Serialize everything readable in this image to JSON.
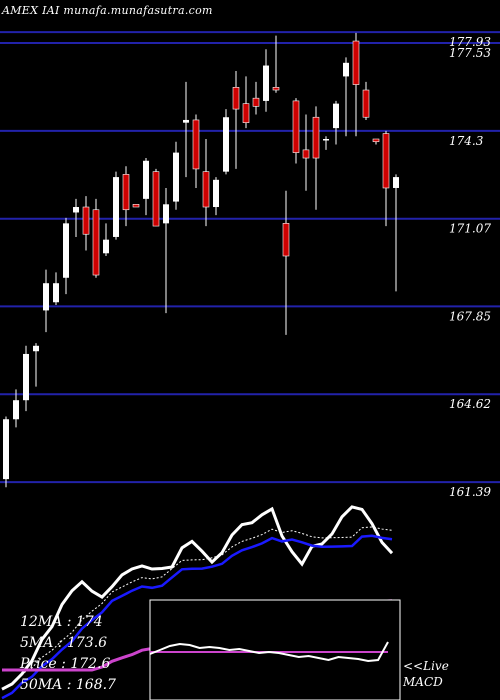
{
  "header": {
    "text": "AMEX  IAI munafa.munafasutra.com"
  },
  "chart_data": {
    "type": "candlestick",
    "price_levels": [
      "177.93",
      "177.53",
      "174.3",
      "171.07",
      "167.85",
      "164.62",
      "161.39"
    ],
    "price_level_values": [
      177.93,
      177.53,
      174.3,
      171.07,
      167.85,
      164.62,
      161.39
    ],
    "ylim": [
      161.1,
      178.3
    ],
    "candles": [
      {
        "o": 161.5,
        "h": 163.8,
        "l": 161.2,
        "c": 163.7
      },
      {
        "o": 163.7,
        "h": 164.8,
        "l": 163.4,
        "c": 164.4
      },
      {
        "o": 164.4,
        "h": 166.4,
        "l": 164.0,
        "c": 166.1
      },
      {
        "o": 166.2,
        "h": 166.5,
        "l": 164.9,
        "c": 166.4
      },
      {
        "o": 167.7,
        "h": 169.2,
        "l": 166.9,
        "c": 168.7
      },
      {
        "o": 168.0,
        "h": 169.1,
        "l": 167.9,
        "c": 168.7
      },
      {
        "o": 168.9,
        "h": 171.1,
        "l": 168.3,
        "c": 170.9
      },
      {
        "o": 171.3,
        "h": 171.8,
        "l": 170.4,
        "c": 171.5
      },
      {
        "o": 171.5,
        "h": 171.9,
        "l": 169.9,
        "c": 170.5
      },
      {
        "o": 171.4,
        "h": 171.8,
        "l": 168.9,
        "c": 169.0
      },
      {
        "o": 169.8,
        "h": 170.9,
        "l": 169.7,
        "c": 170.3
      },
      {
        "o": 170.4,
        "h": 172.8,
        "l": 170.3,
        "c": 172.6
      },
      {
        "o": 172.7,
        "h": 173.0,
        "l": 170.8,
        "c": 171.4
      },
      {
        "o": 171.6,
        "h": 171.6,
        "l": 171.5,
        "c": 171.5
      },
      {
        "o": 171.8,
        "h": 173.3,
        "l": 171.2,
        "c": 173.2
      },
      {
        "o": 172.8,
        "h": 172.9,
        "l": 170.8,
        "c": 170.8
      },
      {
        "o": 170.9,
        "h": 172.2,
        "l": 167.6,
        "c": 171.6
      },
      {
        "o": 171.7,
        "h": 173.9,
        "l": 171.4,
        "c": 173.5
      },
      {
        "o": 174.6,
        "h": 176.1,
        "l": 172.6,
        "c": 174.7
      },
      {
        "o": 174.7,
        "h": 174.9,
        "l": 172.2,
        "c": 172.9
      },
      {
        "o": 172.8,
        "h": 174.0,
        "l": 170.8,
        "c": 171.5
      },
      {
        "o": 171.5,
        "h": 172.6,
        "l": 171.2,
        "c": 172.5
      },
      {
        "o": 172.8,
        "h": 175.1,
        "l": 172.7,
        "c": 174.8
      },
      {
        "o": 175.9,
        "h": 176.5,
        "l": 172.9,
        "c": 175.1
      },
      {
        "o": 175.3,
        "h": 176.3,
        "l": 174.4,
        "c": 174.6
      },
      {
        "o": 175.5,
        "h": 176.1,
        "l": 174.9,
        "c": 175.2
      },
      {
        "o": 175.4,
        "h": 177.3,
        "l": 175.0,
        "c": 176.7
      },
      {
        "o": 175.9,
        "h": 177.8,
        "l": 175.7,
        "c": 175.8
      },
      {
        "o": 170.9,
        "h": 172.1,
        "l": 166.8,
        "c": 169.7
      },
      {
        "o": 175.4,
        "h": 175.5,
        "l": 173.1,
        "c": 173.5
      },
      {
        "o": 173.6,
        "h": 174.9,
        "l": 172.1,
        "c": 173.3
      },
      {
        "o": 174.8,
        "h": 175.2,
        "l": 171.4,
        "c": 173.3
      },
      {
        "o": 174.0,
        "h": 174.1,
        "l": 173.6,
        "c": 174.0
      },
      {
        "o": 174.4,
        "h": 175.4,
        "l": 173.8,
        "c": 175.3
      },
      {
        "o": 176.3,
        "h": 177.0,
        "l": 174.1,
        "c": 176.8
      },
      {
        "o": 177.6,
        "h": 177.9,
        "l": 174.1,
        "c": 176.0
      },
      {
        "o": 175.8,
        "h": 176.1,
        "l": 174.7,
        "c": 174.8
      },
      {
        "o": 174.0,
        "h": 174.0,
        "l": 173.8,
        "c": 173.9
      },
      {
        "o": 174.2,
        "h": 174.3,
        "l": 170.8,
        "c": 172.2
      },
      {
        "o": 172.2,
        "h": 172.7,
        "l": 168.4,
        "c": 172.6
      }
    ],
    "indicators": {
      "ma_12": 174,
      "ma_5": 173.6,
      "price": 172.6,
      "ma_50": 168.7
    },
    "macd": {
      "label": "MACD",
      "prefix": "<<Live",
      "line": [
        0.4,
        0.6,
        0.8,
        0.9,
        0.85,
        0.7,
        0.75,
        0.7,
        0.6,
        0.65,
        0.55,
        0.45,
        0.5,
        0.45,
        0.35,
        0.25,
        0.3,
        0.2,
        0.1,
        0.25,
        0.2,
        0.15,
        0.05,
        0.1,
        1.0
      ],
      "signal": 0.5
    },
    "colors": {
      "background": "#000000",
      "up": "#ffffff",
      "down": "#cc0000",
      "grid": "#2222aa",
      "ma_short": "#ffffff",
      "ma_mid": "#1a1aff",
      "ma_long": "#cc44cc",
      "macd_line": "#ffffff",
      "macd_signal": "#cc44cc"
    }
  },
  "legend": {
    "ma12": "12MA : 174",
    "ma5": "5MA  : 173.6",
    "price": "Price   : 172.6",
    "ma50": "50MA : 168.7"
  },
  "macd_legend": {
    "line1": "<<Live",
    "line2": "MACD"
  }
}
